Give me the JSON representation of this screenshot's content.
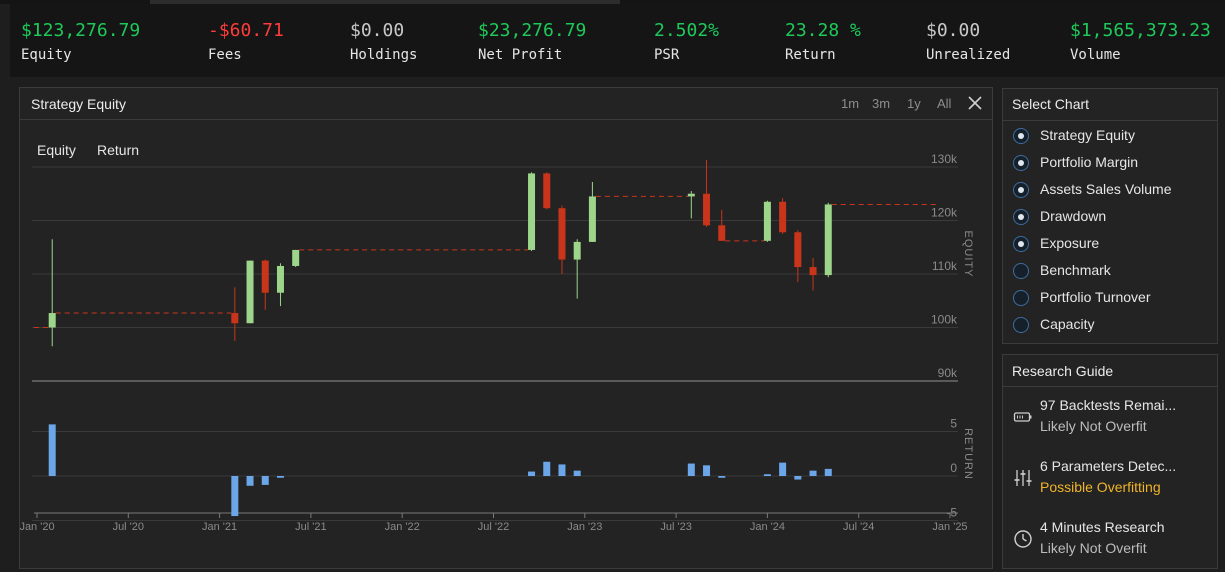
{
  "stats": [
    {
      "value": "$123,276.79",
      "label": "Equity",
      "color": "#1ec95a"
    },
    {
      "value": "-$60.71",
      "label": "Fees",
      "color": "#ff3b3b"
    },
    {
      "value": "$0.00",
      "label": "Holdings",
      "color": "#c8c8c8"
    },
    {
      "value": "$23,276.79",
      "label": "Net Profit",
      "color": "#1ec95a"
    },
    {
      "value": "2.502%",
      "label": "PSR",
      "color": "#1ec95a"
    },
    {
      "value": "23.28 %",
      "label": "Return",
      "color": "#1ec95a"
    },
    {
      "value": "$0.00",
      "label": "Unrealized",
      "color": "#c8c8c8"
    },
    {
      "value": "$1,565,373.23",
      "label": "Volume",
      "color": "#1ec95a"
    }
  ],
  "main_panel": {
    "title": "Strategy Equity",
    "ranges": [
      "1m",
      "3m",
      "1y",
      "All"
    ],
    "legend": [
      "Equity",
      "Return"
    ]
  },
  "chart_data": {
    "type": "candlestick",
    "equity_axis": {
      "label": "EQUITY",
      "ticks": [
        "130k",
        "120k",
        "110k",
        "100k",
        "90k"
      ],
      "values": [
        130000,
        120000,
        110000,
        100000,
        90000
      ]
    },
    "return_axis": {
      "label": "RETURN",
      "ticks": [
        "5",
        "0",
        "-5"
      ],
      "values": [
        5,
        0,
        -5
      ]
    },
    "x_ticks": [
      "Jan '20",
      "Jul '20",
      "Jan '21",
      "Jul '21",
      "Jan '22",
      "Jul '22",
      "Jan '23",
      "Jul '23",
      "Jan '24",
      "Jul '24",
      "Jan '25"
    ],
    "x_tick_months": [
      0,
      6,
      12,
      18,
      24,
      30,
      36,
      42,
      48,
      54,
      60
    ],
    "candles": [
      {
        "m": 1.0,
        "o": 100000,
        "h": 116500,
        "l": 96500,
        "c": 102700
      },
      {
        "m": 13.0,
        "o": 102700,
        "h": 107500,
        "l": 97500,
        "c": 100800
      },
      {
        "m": 14.0,
        "o": 100800,
        "h": 112500,
        "l": 100800,
        "c": 112500
      },
      {
        "m": 15.0,
        "o": 112500,
        "h": 112700,
        "l": 103300,
        "c": 106500
      },
      {
        "m": 16.0,
        "o": 106500,
        "h": 112000,
        "l": 104000,
        "c": 111500
      },
      {
        "m": 17.0,
        "o": 111500,
        "h": 114500,
        "l": 111300,
        "c": 114500
      },
      {
        "m": 32.5,
        "o": 114500,
        "h": 129000,
        "l": 114300,
        "c": 128800
      },
      {
        "m": 33.5,
        "o": 128800,
        "h": 129000,
        "l": 122100,
        "c": 122300
      },
      {
        "m": 34.5,
        "o": 122300,
        "h": 122800,
        "l": 110000,
        "c": 112700
      },
      {
        "m": 35.5,
        "o": 112700,
        "h": 116500,
        "l": 105400,
        "c": 116000
      },
      {
        "m": 36.5,
        "o": 116000,
        "h": 127200,
        "l": 116000,
        "c": 124500
      },
      {
        "m": 43.0,
        "o": 124500,
        "h": 125500,
        "l": 120400,
        "c": 125000
      },
      {
        "m": 44.0,
        "o": 125000,
        "h": 131300,
        "l": 118800,
        "c": 119100
      },
      {
        "m": 45.0,
        "o": 119100,
        "h": 122000,
        "l": 116200,
        "c": 116200
      },
      {
        "m": 48.0,
        "o": 116200,
        "h": 123700,
        "l": 116000,
        "c": 123500
      },
      {
        "m": 49.0,
        "o": 123500,
        "h": 124200,
        "l": 117500,
        "c": 117800
      },
      {
        "m": 50.0,
        "o": 117800,
        "h": 118200,
        "l": 108500,
        "c": 111300
      },
      {
        "m": 51.0,
        "o": 111300,
        "h": 113000,
        "l": 106900,
        "c": 109800
      },
      {
        "m": 52.0,
        "o": 109800,
        "h": 123300,
        "l": 109400,
        "c": 123000
      }
    ],
    "returns": [
      {
        "m": 1.0,
        "v": 5.8
      },
      {
        "m": 13.0,
        "v": -4.5
      },
      {
        "m": 14.0,
        "v": -1.1
      },
      {
        "m": 15.0,
        "v": -1.0
      },
      {
        "m": 16.0,
        "v": -0.2
      },
      {
        "m": 32.5,
        "v": 0.5
      },
      {
        "m": 33.5,
        "v": 1.6
      },
      {
        "m": 34.5,
        "v": 1.3
      },
      {
        "m": 35.5,
        "v": 0.6
      },
      {
        "m": 43.0,
        "v": 1.4
      },
      {
        "m": 44.0,
        "v": 1.2
      },
      {
        "m": 45.0,
        "v": -0.2
      },
      {
        "m": 48.0,
        "v": 0.2
      },
      {
        "m": 49.0,
        "v": 1.5
      },
      {
        "m": 50.0,
        "v": -0.4
      },
      {
        "m": 51.0,
        "v": 0.6
      },
      {
        "m": 52.0,
        "v": 0.8
      }
    ],
    "colors": {
      "up": "#9dd58b",
      "down": "#c9351b",
      "return_bar": "#6aa6e8",
      "dash": "#c9351b"
    }
  },
  "select_chart": {
    "title": "Select Chart",
    "items": [
      {
        "label": "Strategy Equity",
        "checked": true
      },
      {
        "label": "Portfolio Margin",
        "checked": true
      },
      {
        "label": "Assets Sales Volume",
        "checked": true
      },
      {
        "label": "Drawdown",
        "checked": true
      },
      {
        "label": "Exposure",
        "checked": true
      },
      {
        "label": "Benchmark",
        "checked": false
      },
      {
        "label": "Portfolio Turnover",
        "checked": false
      },
      {
        "label": "Capacity",
        "checked": false
      }
    ]
  },
  "research_guide": {
    "title": "Research Guide",
    "items": [
      {
        "icon": "battery-icon",
        "title": "97 Backtests Remai...",
        "status": "Likely Not Overfit",
        "status_color": "#bdbdbd"
      },
      {
        "icon": "sliders-icon",
        "title": "6 Parameters Detec...",
        "status": "Possible Overfitting",
        "status_color": "#f0b429"
      },
      {
        "icon": "clock-icon",
        "title": "4 Minutes Research",
        "status": "Likely Not Overfit",
        "status_color": "#bdbdbd"
      }
    ]
  }
}
